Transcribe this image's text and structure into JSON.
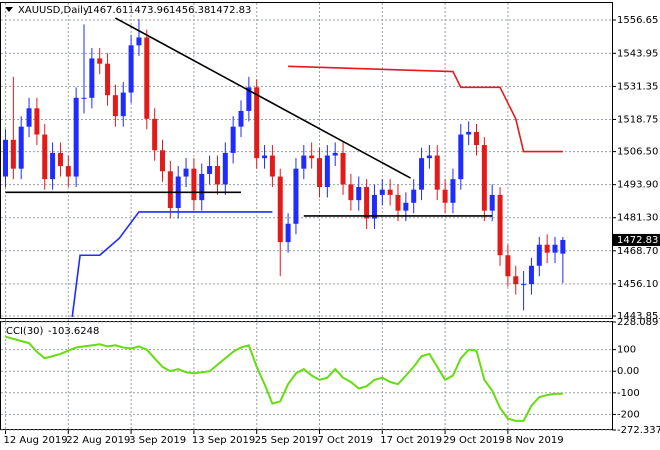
{
  "chart_data": [
    {
      "type": "candlestick",
      "title": "XAUUSD,Daily",
      "categories": [
        "12 Aug 2019",
        null,
        null,
        null,
        null,
        null,
        null,
        null,
        "22 Aug 2019",
        null,
        null,
        null,
        null,
        null,
        null,
        null,
        "3 Sep 2019",
        null,
        null,
        null,
        null,
        null,
        null,
        null,
        "13 Sep 2019",
        null,
        null,
        null,
        null,
        null,
        null,
        null,
        "25 Sep 2019",
        null,
        null,
        null,
        null,
        null,
        null,
        null,
        "7 Oct 2019",
        null,
        null,
        null,
        null,
        null,
        null,
        null,
        "17 Oct 2019",
        null,
        null,
        null,
        null,
        null,
        null,
        null,
        "29 Oct 2019",
        null,
        null,
        null,
        null,
        null,
        null,
        null,
        "8 Nov 2019",
        null,
        null,
        null,
        null,
        null,
        null,
        null
      ],
      "open": [
        1497,
        1511,
        1500,
        1516,
        1523,
        1513,
        1496,
        1506,
        1501,
        1497,
        1527,
        1527,
        1542,
        1540,
        1528,
        1520,
        1529,
        1547,
        1550,
        1519,
        1507,
        1499,
        1485,
        1497,
        1500,
        1488,
        1498,
        1501,
        1494,
        1506,
        1516,
        1522,
        1531,
        1504,
        1505,
        1497,
        1472,
        1479,
        1500,
        1505,
        1504,
        1493,
        1505,
        1506,
        1494,
        1488,
        1493,
        1481,
        1490,
        1492,
        1490,
        1484,
        1487,
        1492,
        1504,
        1505,
        1492,
        1487,
        1496,
        1513,
        1514,
        1509,
        1484,
        1490,
        1467,
        1459,
        1456,
        1456,
        1463,
        1471,
        1468,
        1467.61
      ],
      "high": [
        1515,
        1535,
        1520,
        1527,
        1527,
        1517,
        1510,
        1510,
        1505,
        1531,
        1555,
        1546,
        1546,
        1544,
        1532,
        1533,
        1551,
        1557,
        1553,
        1523,
        1511,
        1503,
        1501,
        1504,
        1504,
        1502,
        1505,
        1505,
        1510,
        1520,
        1526,
        1535,
        1534,
        1509,
        1509,
        1500,
        1483,
        1504,
        1509,
        1510,
        1508,
        1509,
        1510,
        1510,
        1498,
        1497,
        1496,
        1494,
        1496,
        1496,
        1494,
        1491,
        1496,
        1508,
        1509,
        1509,
        1496,
        1500,
        1517,
        1518,
        1517,
        1512,
        1494,
        1493,
        1471,
        1463,
        1461,
        1466,
        1474,
        1475,
        1474,
        1473.96
      ],
      "low": [
        1493,
        1496,
        1496,
        1512,
        1509,
        1492,
        1492,
        1497,
        1493,
        1493,
        1521,
        1523,
        1536,
        1524,
        1516,
        1516,
        1525,
        1543,
        1515,
        1503,
        1495,
        1481,
        1481,
        1493,
        1484,
        1484,
        1494,
        1490,
        1490,
        1502,
        1512,
        1518,
        1500,
        1500,
        1493,
        1459,
        1468,
        1475,
        1496,
        1500,
        1489,
        1489,
        1501,
        1490,
        1484,
        1484,
        1477,
        1477,
        1486,
        1486,
        1480,
        1480,
        1483,
        1488,
        1500,
        1488,
        1483,
        1483,
        1492,
        1509,
        1505,
        1480,
        1480,
        1463,
        1455,
        1452,
        1446,
        1452,
        1459,
        1464,
        1464,
        1456.38
      ],
      "close": [
        1511,
        1500,
        1516,
        1523,
        1513,
        1496,
        1506,
        1501,
        1497,
        1527,
        1527,
        1542,
        1540,
        1528,
        1520,
        1529,
        1547,
        1550,
        1519,
        1507,
        1499,
        1485,
        1497,
        1500,
        1488,
        1498,
        1501,
        1494,
        1506,
        1516,
        1522,
        1531,
        1504,
        1505,
        1497,
        1472,
        1479,
        1500,
        1505,
        1504,
        1493,
        1505,
        1506,
        1494,
        1488,
        1493,
        1481,
        1490,
        1492,
        1490,
        1484,
        1487,
        1492,
        1504,
        1505,
        1492,
        1487,
        1496,
        1513,
        1514,
        1509,
        1484,
        1490,
        1467,
        1459,
        1456,
        1456,
        1463,
        1471,
        1468,
        1471,
        1472.83
      ],
      "up_color": "#1f2bff",
      "down_color": "#e31a1a",
      "ylim": [
        1443.09,
        1563.51
      ],
      "yticks": [
        1443.85,
        {
          "value": 1456.1,
          "label": "1456.10"
        },
        {
          "value": 1468.7,
          "label": "1468.70"
        },
        {
          "value": 1481.3,
          "label": "1481.30"
        },
        {
          "value": 1493.9,
          "label": "1493.90"
        },
        {
          "value": 1506.5,
          "label": "1506.50"
        },
        1518.75,
        1531.35,
        1543.95,
        1556.65
      ],
      "grid": true,
      "lines": [
        {
          "color": "#000000",
          "x": [
            14,
            51.6
          ],
          "y": [
            1557.4,
            1496.4
          ]
        },
        {
          "color": "#000000",
          "x": [
            0,
            30
          ],
          "y": [
            1491,
            1491
          ]
        },
        {
          "color": "#000000",
          "x": [
            38,
            62
          ],
          "y": [
            1482,
            1482
          ]
        },
        {
          "color": "#e31a1a",
          "x": [
            36,
            57,
            58,
            63,
            65,
            66,
            71
          ],
          "y": [
            1539,
            1537,
            1531,
            1531,
            1519,
            1506.5,
            1506.5
          ]
        },
        {
          "color": "#1f2bff",
          "x": [
            8.5,
            9.5,
            12,
            14.5,
            17,
            34
          ],
          "y": [
            1443.5,
            1467,
            1467,
            1473.5,
            1483.5,
            1483.5
          ]
        }
      ]
    },
    {
      "type": "line",
      "title": "CCI(30)",
      "values": [
        160,
        150,
        140,
        130,
        90,
        60,
        70,
        80,
        95,
        110,
        115,
        120,
        125,
        115,
        120,
        110,
        105,
        115,
        100,
        60,
        20,
        0,
        10,
        -5,
        -10,
        -5,
        0,
        30,
        60,
        90,
        110,
        120,
        20,
        -60,
        -150,
        -140,
        -60,
        -10,
        10,
        -20,
        -40,
        -30,
        10,
        -30,
        -50,
        -80,
        -70,
        -40,
        -30,
        -50,
        -60,
        -20,
        20,
        70,
        80,
        20,
        -40,
        -20,
        60,
        100,
        95,
        -40,
        -90,
        -170,
        -220,
        -230,
        -230,
        -160,
        -120,
        -110,
        -105,
        -103.6248
      ],
      "color": "#66dd11",
      "ylim": [
        -272.3377,
        228.0897
      ],
      "yticks": [
        -272.3377,
        -200,
        -100,
        {
          "value": 0,
          "label": "0.00"
        },
        100,
        228.0897
      ],
      "grid": true
    }
  ]
}
